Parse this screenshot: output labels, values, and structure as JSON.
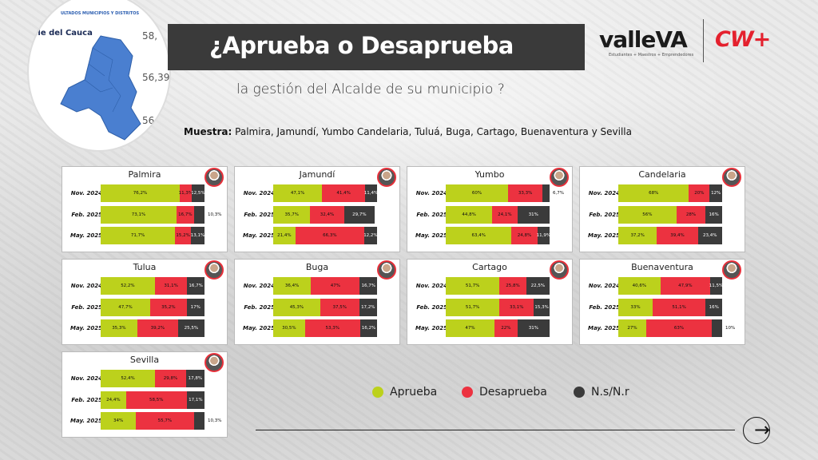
{
  "header": {
    "title": "¿Aprueba o Desaprueba",
    "subtitle": "la gestión del Alcalde de su municipio ?",
    "logo_valle": "valleVA",
    "logo_valle_tagline": "Estudiantes + Maestros + Emprendedores",
    "logo_cw": "CW+"
  },
  "map_inset": {
    "tabs_text": "ULTADOS   MUNICIPIOS Y DISTRITOS",
    "title": "lle del Cauca",
    "numbers": [
      "58,",
      "56,39",
      "56"
    ]
  },
  "muestra": {
    "label": "Muestra:",
    "text": " Palmira, Jamundí, Yumbo Candelaria, Tuluá, Buga, Cartago, Buenaventura y Sevilla"
  },
  "legend": [
    {
      "label": "Aprueba",
      "color": "#bcd11c"
    },
    {
      "label": "Desaprueba",
      "color": "#ec3240"
    },
    {
      "label": "N.s/N.r",
      "color": "#3b3b3b"
    }
  ],
  "colors": {
    "aprueba": "#bcd11c",
    "desaprueba": "#ec3240",
    "ns": "#3b3b3b"
  },
  "chart_data": [
    {
      "type": "bar",
      "title": "Palmira",
      "categories": [
        "Nov. 2024",
        "Feb. 2025",
        "May. 2025"
      ],
      "series": [
        {
          "name": "Aprueba",
          "values": [
            76.2,
            73.1,
            71.7
          ],
          "labels": [
            "76,2%",
            "73,1%",
            "71,7%"
          ]
        },
        {
          "name": "Desaprueba",
          "values": [
            11.3,
            16.7,
            15.2
          ],
          "labels": [
            "11,3%",
            "16,7%",
            "15,2%"
          ]
        },
        {
          "name": "N.s/N.r",
          "values": [
            12.5,
            10.3,
            13.1
          ],
          "labels": [
            "12,5%",
            "10,3%",
            "13,1%"
          ]
        }
      ]
    },
    {
      "type": "bar",
      "title": "Jamundí",
      "categories": [
        "Nov. 2024",
        "Feb. 2025",
        "May. 2025"
      ],
      "series": [
        {
          "name": "Aprueba",
          "values": [
            47.1,
            35.7,
            21.4
          ],
          "labels": [
            "47,1%",
            "35,7%",
            "21,4%"
          ]
        },
        {
          "name": "Desaprueba",
          "values": [
            41.4,
            32.4,
            66.3
          ],
          "labels": [
            "41,4%",
            "32,4%",
            "66,3%"
          ]
        },
        {
          "name": "N.s/N.r",
          "values": [
            11.4,
            29.7,
            12.2
          ],
          "labels": [
            "11,4%",
            "29,7%",
            "12,2%"
          ]
        }
      ]
    },
    {
      "type": "bar",
      "title": "Yumbo",
      "categories": [
        "Nov. 2024",
        "Feb. 2025",
        "May. 2025"
      ],
      "series": [
        {
          "name": "Aprueba",
          "values": [
            60,
            44.8,
            63.4
          ],
          "labels": [
            "60%",
            "44,8%",
            "63,4%"
          ]
        },
        {
          "name": "Desaprueba",
          "values": [
            33.3,
            24.1,
            24.8
          ],
          "labels": [
            "33,3%",
            "24,1%",
            "24,8%"
          ]
        },
        {
          "name": "N.s/N.r",
          "values": [
            6.7,
            31,
            11.9
          ],
          "labels": [
            "6,7%",
            "31%",
            "11,9%"
          ]
        }
      ]
    },
    {
      "type": "bar",
      "title": "Candelaria",
      "categories": [
        "Nov. 2024",
        "Feb. 2025",
        "May. 2025"
      ],
      "series": [
        {
          "name": "Aprueba",
          "values": [
            68,
            56,
            37.2
          ],
          "labels": [
            "68%",
            "56%",
            "37,2%"
          ]
        },
        {
          "name": "Desaprueba",
          "values": [
            20,
            28,
            39.4
          ],
          "labels": [
            "20%",
            "28%",
            "39,4%"
          ]
        },
        {
          "name": "N.s/N.r",
          "values": [
            12,
            16,
            23.4
          ],
          "labels": [
            "12%",
            "16%",
            "23,4%"
          ]
        }
      ]
    },
    {
      "type": "bar",
      "title": "Tulua",
      "categories": [
        "Nov. 2024",
        "Feb. 2025",
        "May. 2025"
      ],
      "series": [
        {
          "name": "Aprueba",
          "values": [
            52.2,
            47.7,
            35.3
          ],
          "labels": [
            "52,2%",
            "47,7%",
            "35,3%"
          ]
        },
        {
          "name": "Desaprueba",
          "values": [
            31.1,
            35.2,
            39.2
          ],
          "labels": [
            "31,1%",
            "35,2%",
            "39,2%"
          ]
        },
        {
          "name": "N.s/N.r",
          "values": [
            16.7,
            17,
            25.5
          ],
          "labels": [
            "16,7%",
            "17%",
            "25,5%"
          ]
        }
      ]
    },
    {
      "type": "bar",
      "title": "Buga",
      "categories": [
        "Nov. 2024",
        "Feb. 2025",
        "May. 2025"
      ],
      "series": [
        {
          "name": "Aprueba",
          "values": [
            36.4,
            45.3,
            30.5
          ],
          "labels": [
            "36,4%",
            "45,3%",
            "30,5%"
          ]
        },
        {
          "name": "Desaprueba",
          "values": [
            47,
            37.5,
            53.3
          ],
          "labels": [
            "47%",
            "37,5%",
            "53,3%"
          ]
        },
        {
          "name": "N.s/N.r",
          "values": [
            16.7,
            17.2,
            16.2
          ],
          "labels": [
            "16,7%",
            "17,2%",
            "16,2%"
          ]
        }
      ]
    },
    {
      "type": "bar",
      "title": "Cartago",
      "categories": [
        "Nov. 2024",
        "Feb. 2025",
        "May. 2025"
      ],
      "series": [
        {
          "name": "Aprueba",
          "values": [
            51.7,
            51.7,
            47
          ],
          "labels": [
            "51,7%",
            "51,7%",
            "47%"
          ]
        },
        {
          "name": "Desaprueba",
          "values": [
            25.8,
            33.1,
            22
          ],
          "labels": [
            "25,8%",
            "33,1%",
            "22%"
          ]
        },
        {
          "name": "N.s/N.r",
          "values": [
            22.5,
            15.3,
            31
          ],
          "labels": [
            "22,5%",
            "15,3%",
            "31%"
          ]
        }
      ]
    },
    {
      "type": "bar",
      "title": "Buenaventura",
      "categories": [
        "Nov. 2024",
        "Feb. 2025",
        "May. 2025"
      ],
      "series": [
        {
          "name": "Aprueba",
          "values": [
            40.6,
            33,
            27
          ],
          "labels": [
            "40,6%",
            "33%",
            "27%"
          ]
        },
        {
          "name": "Desaprueba",
          "values": [
            47.9,
            51.1,
            63
          ],
          "labels": [
            "47,9%",
            "51,1%",
            "63%"
          ]
        },
        {
          "name": "N.s/N.r",
          "values": [
            11.5,
            16,
            10
          ],
          "labels": [
            "11,5%",
            "16%",
            "10%"
          ]
        }
      ]
    },
    {
      "type": "bar",
      "title": "Sevilla",
      "categories": [
        "Nov. 2024",
        "Feb. 2025",
        "May. 2025"
      ],
      "series": [
        {
          "name": "Aprueba",
          "values": [
            52.4,
            24.4,
            34
          ],
          "labels": [
            "52,4%",
            "24,4%",
            "34%"
          ]
        },
        {
          "name": "Desaprueba",
          "values": [
            29.8,
            58.5,
            55.7
          ],
          "labels": [
            "29,8%",
            "58,5%",
            "55,7%"
          ]
        },
        {
          "name": "N.s/N.r",
          "values": [
            17.8,
            17.1,
            10.3
          ],
          "labels": [
            "17,8%",
            "17,1%",
            "10,3%"
          ]
        }
      ]
    }
  ]
}
